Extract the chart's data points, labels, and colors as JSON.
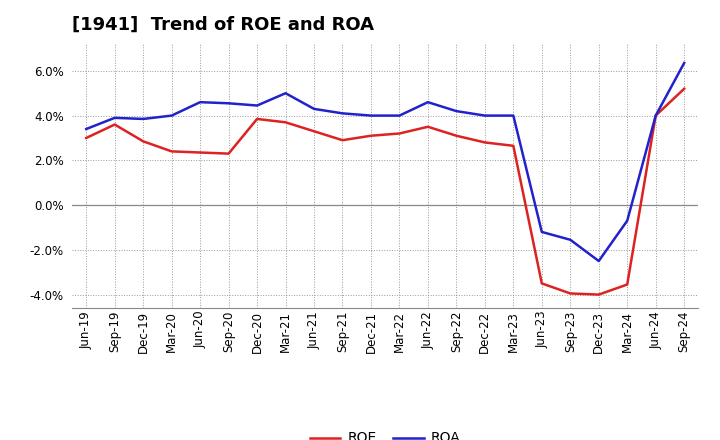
{
  "title": "[1941]  Trend of ROE and ROA",
  "x_labels": [
    "Jun-19",
    "Sep-19",
    "Dec-19",
    "Mar-20",
    "Jun-20",
    "Sep-20",
    "Dec-20",
    "Mar-21",
    "Jun-21",
    "Sep-21",
    "Dec-21",
    "Mar-22",
    "Jun-22",
    "Sep-22",
    "Dec-22",
    "Mar-23",
    "Jun-23",
    "Sep-23",
    "Dec-23",
    "Mar-24",
    "Jun-24",
    "Sep-24"
  ],
  "roe": [
    3.0,
    3.6,
    2.85,
    2.4,
    2.35,
    2.3,
    3.85,
    3.7,
    3.3,
    2.9,
    3.1,
    3.2,
    3.5,
    3.1,
    2.8,
    2.65,
    -3.5,
    -3.95,
    -4.0,
    -3.55,
    4.0,
    5.2
  ],
  "roa": [
    3.4,
    3.9,
    3.85,
    4.0,
    4.6,
    4.55,
    4.45,
    5.0,
    4.3,
    4.1,
    4.0,
    4.0,
    4.6,
    4.2,
    4.0,
    4.0,
    -1.2,
    -1.55,
    -2.5,
    -0.7,
    4.0,
    6.35
  ],
  "roe_color": "#dd2222",
  "roa_color": "#2222cc",
  "background_color": "#ffffff",
  "plot_bg_color": "#ffffff",
  "grid_color": "#999999",
  "ylim": [
    -4.6,
    7.2
  ],
  "yticks": [
    -4.0,
    -2.0,
    0.0,
    2.0,
    4.0,
    6.0
  ],
  "title_fontsize": 13,
  "legend_fontsize": 10,
  "tick_fontsize": 8.5
}
